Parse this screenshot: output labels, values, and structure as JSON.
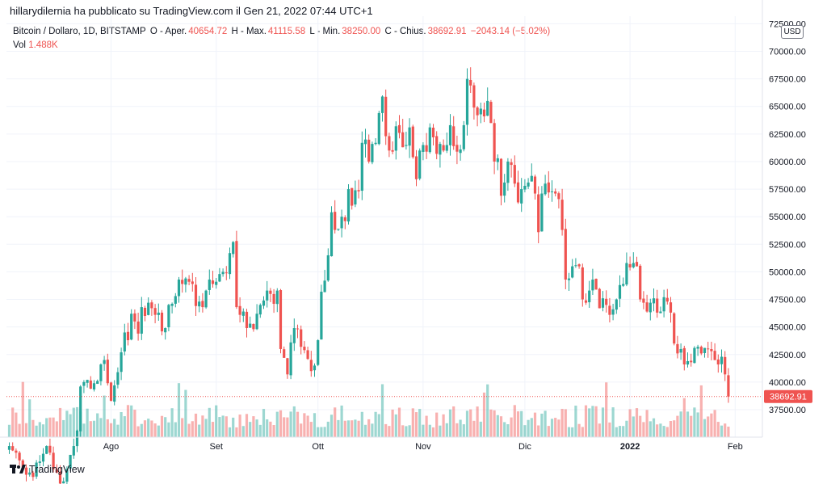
{
  "header": {
    "published_line": "hillarydilernia ha pubblicato su TradingView.com il Gen 21, 2022 07:44 UTC+1"
  },
  "legend": {
    "symbol": "Bitcoin / Dollaro, 1D, BITSTAMP",
    "open_label": "O - Aper.",
    "open_value": "40654.72",
    "high_label": "H - Max.",
    "high_value": "41115.58",
    "low_label": "L - Min.",
    "low_value": "38250.00",
    "close_label": "C - Chius.",
    "close_value": "38692.91",
    "change": "−2043.14 (−5.02%)",
    "vol_label": "Vol",
    "vol_value": "1.488K"
  },
  "currency_badge": "USD",
  "last_price_label": "38692.91",
  "brand": "TradingView",
  "colors": {
    "up": "#26a69a",
    "down": "#ef5350",
    "grid": "#f0f3fa"
  },
  "chart_data": {
    "type": "candlestick",
    "y_ticks": [
      "72500.00",
      "70000.00",
      "67500.00",
      "65000.00",
      "62500.00",
      "60000.00",
      "57500.00",
      "55000.00",
      "52500.00",
      "50000.00",
      "47500.00",
      "45000.00",
      "42500.00",
      "40000.00",
      "37500.00"
    ],
    "x_ticks": [
      {
        "label": "Ago",
        "index": 30,
        "bold": false
      },
      {
        "label": "Set",
        "index": 61,
        "bold": false
      },
      {
        "label": "Ott",
        "index": 91,
        "bold": false
      },
      {
        "label": "Nov",
        "index": 122,
        "bold": false
      },
      {
        "label": "Dic",
        "index": 152,
        "bold": false
      },
      {
        "label": "2022",
        "index": 183,
        "bold": true
      },
      {
        "label": "Feb",
        "index": 214,
        "bold": false
      }
    ],
    "ylim": [
      35500,
      73000
    ],
    "last_price": 38692.91,
    "series_name": "Bitcoin / Dollaro",
    "closes": [
      34200,
      33800,
      33600,
      32900,
      32300,
      31600,
      31800,
      31400,
      32700,
      32800,
      33500,
      34200,
      33600,
      32100,
      31800,
      30800,
      31000,
      32100,
      33400,
      34200,
      35600,
      39600,
      40000,
      40200,
      39400,
      39900,
      40100,
      41600,
      42000,
      39900,
      38300,
      39700,
      40900,
      42700,
      44500,
      43800,
      46200,
      45500,
      44400,
      46800,
      46000,
      47200,
      46700,
      46100,
      46300,
      44600,
      44900,
      47000,
      47100,
      47800,
      49300,
      48900,
      49400,
      49100,
      48900,
      46900,
      47300,
      46800,
      48300,
      49300,
      48900,
      49100,
      49800,
      50000,
      49900,
      51700,
      52700,
      46800,
      46100,
      46400,
      44900,
      45300,
      44800,
      46200,
      47000,
      47400,
      48300,
      48000,
      47100,
      48300,
      43000,
      42200,
      40700,
      43600,
      44900,
      44800,
      43200,
      42900,
      42100,
      41000,
      41500,
      43800,
      48200,
      49200,
      51500,
      55400,
      53800,
      53900,
      55000,
      54600,
      57500,
      56000,
      57400,
      57300,
      61700,
      62000,
      60000,
      61600,
      61700,
      64400,
      65900,
      62300,
      61000,
      60900,
      63200,
      62600,
      61300,
      61500,
      63100,
      60400,
      58400,
      61000,
      61500,
      60900,
      63100,
      62200,
      60700,
      61600,
      61000,
      61500,
      63300,
      61400,
      60900,
      61100,
      63300,
      67500,
      66900,
      64900,
      64200,
      64800,
      64100,
      65500,
      63500,
      60000,
      60300,
      56900,
      58100,
      60000,
      59700,
      58000,
      56300,
      57500,
      57800,
      58100,
      58700,
      57100,
      53600,
      57100,
      58000,
      57200,
      57300,
      57100,
      56600,
      53800,
      49300,
      49400,
      50500,
      50600,
      50500,
      47500,
      47200,
      48300,
      49300,
      48400,
      46700,
      47600,
      47000,
      46100,
      46600,
      47500,
      48800,
      48900,
      50800,
      50400,
      50800,
      50500,
      47500,
      47200,
      46400,
      47200,
      47600,
      46300,
      46400,
      47700,
      47300,
      46300,
      43500,
      42600,
      43000,
      41600,
      41900,
      41800,
      43100,
      43200,
      42600,
      43100,
      43000,
      42800,
      42000,
      41600,
      42300,
      40700,
      38692
    ]
  }
}
